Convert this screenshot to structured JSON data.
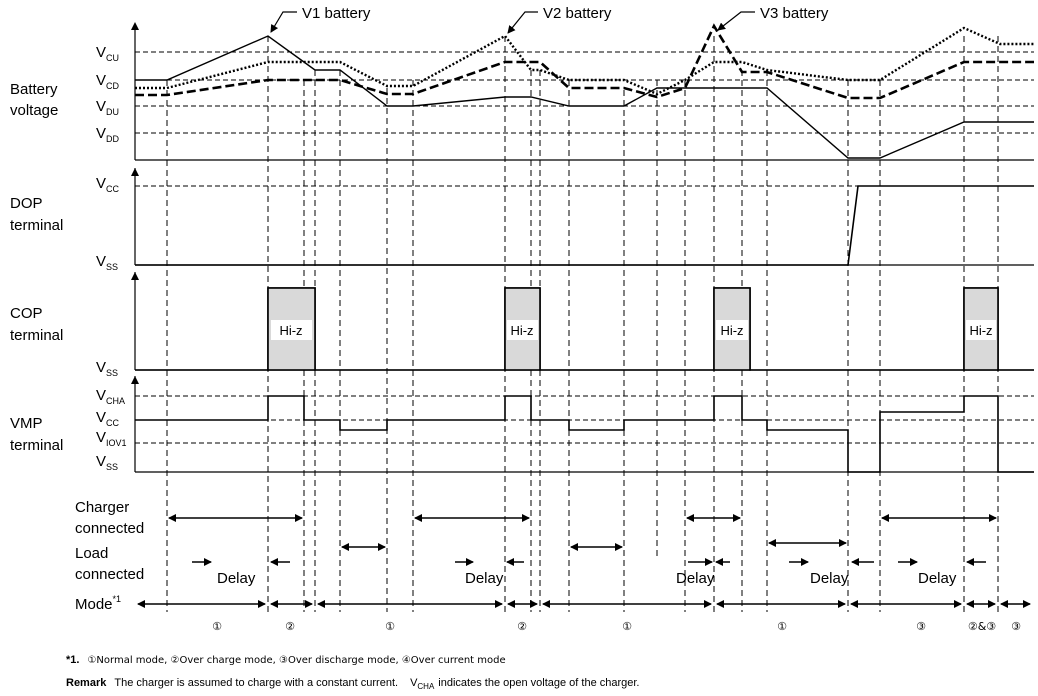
{
  "callouts": {
    "v1": "V1 battery",
    "v2": "V2 battery",
    "v3": "V3 battery"
  },
  "rows": {
    "battery": [
      "Battery",
      "voltage"
    ],
    "dop": [
      "DOP",
      "terminal"
    ],
    "cop": [
      "COP",
      "terminal"
    ],
    "vmp": [
      "VMP",
      "terminal"
    ],
    "charger": [
      "Charger",
      "connected"
    ],
    "load": [
      "Load",
      "connected"
    ],
    "mode": "Mode",
    "mode_sup": "*1"
  },
  "levels": {
    "vcu": {
      "main": "V",
      "sub": "CU"
    },
    "vcd": {
      "main": "V",
      "sub": "CD"
    },
    "vdu": {
      "main": "V",
      "sub": "DU"
    },
    "vdd": {
      "main": "V",
      "sub": "DD"
    },
    "vcc": {
      "main": "V",
      "sub": "CC"
    },
    "vss": {
      "main": "V",
      "sub": "SS"
    },
    "vcha": {
      "main": "V",
      "sub": "CHA"
    },
    "viov1": {
      "main": "V",
      "sub": "IOV1"
    }
  },
  "hiz": "Hi-z",
  "delay": "Delay",
  "modes": [
    "①",
    "②",
    "①",
    "②",
    "①",
    "①",
    "③",
    "②&③",
    "③"
  ],
  "footnote": {
    "marker": "*1.",
    "text": "①Normal mode, ②Over charge mode, ③Over discharge mode, ④Over current mode"
  },
  "remark": {
    "label": "Remark",
    "text_a": "The charger is assumed to charge with a constant current.",
    "vcha_main": "V",
    "vcha_sub": "CHA",
    "text_b": "indicates the open voltage of the charger."
  }
}
